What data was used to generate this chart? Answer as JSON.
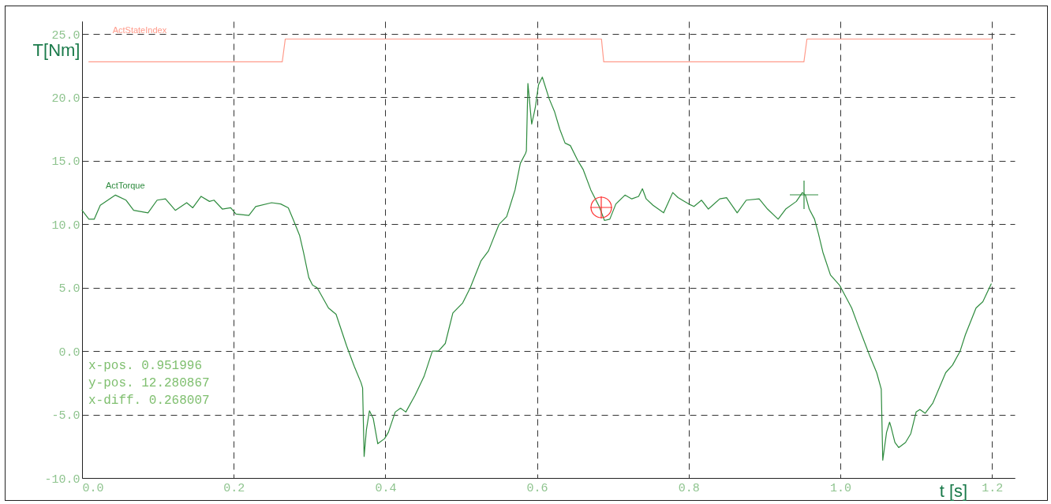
{
  "chart_data": {
    "type": "line",
    "xlabel": "t [s]",
    "ylabel": "T[Nm]",
    "xlim": [
      0,
      1.23
    ],
    "ylim": [
      -10,
      26
    ],
    "xticks": [
      {
        "value": 0,
        "label": "0.0"
      },
      0.2,
      0.4,
      0.6,
      0.8,
      {
        "value": 1,
        "label": "1.0"
      },
      1.2
    ],
    "yticks": [
      {
        "value": -10,
        "label": "-10.0"
      },
      {
        "value": -5,
        "label": "-5.0"
      },
      {
        "value": 0,
        "label": "0.0"
      },
      {
        "value": 5,
        "label": "5.0"
      },
      {
        "value": 10,
        "label": "10.0"
      },
      {
        "value": 15,
        "label": "15.0"
      },
      {
        "value": 20,
        "label": "20.0"
      },
      {
        "value": 25,
        "label": "25.0"
      }
    ],
    "grid": true,
    "annotations": [
      "x-pos. 0.951996",
      "y-pos. 12.280867",
      "x-diff. 0.268007"
    ],
    "series": [
      {
        "name": "ActStateIndex",
        "color": "#ff9a8a",
        "x": [
          0.009,
          0.264,
          0.268,
          0.685,
          0.688,
          0.952,
          0.956,
          1.2
        ],
        "values": [
          22.8,
          22.8,
          24.6,
          24.6,
          22.8,
          22.8,
          24.6,
          24.6
        ]
      },
      {
        "name": "ActTorque",
        "color": "#2e8b3e",
        "x": [
          0,
          0.009,
          0.016,
          0.024,
          0.044,
          0.058,
          0.068,
          0.087,
          0.099,
          0.11,
          0.123,
          0.138,
          0.146,
          0.157,
          0.168,
          0.174,
          0.185,
          0.196,
          0.203,
          0.22,
          0.229,
          0.25,
          0.262,
          0.272,
          0.279,
          0.287,
          0.292,
          0.299,
          0.304,
          0.31,
          0.325,
          0.335,
          0.349,
          0.359,
          0.368,
          0.37,
          0.372,
          0.375,
          0.379,
          0.384,
          0.39,
          0.399,
          0.404,
          0.413,
          0.42,
          0.427,
          0.439,
          0.451,
          0.462,
          0.47,
          0.479,
          0.489,
          0.502,
          0.512,
          0.526,
          0.536,
          0.55,
          0.56,
          0.571,
          0.578,
          0.585,
          0.586,
          0.588,
          0.592,
          0.593,
          0.596,
          0.598,
          0.602,
          0.607,
          0.616,
          0.623,
          0.63,
          0.637,
          0.644,
          0.654,
          0.661,
          0.671,
          0.682,
          0.689,
          0.696,
          0.704,
          0.716,
          0.725,
          0.734,
          0.739,
          0.744,
          0.753,
          0.767,
          0.779,
          0.786,
          0.8,
          0.807,
          0.817,
          0.826,
          0.841,
          0.85,
          0.864,
          0.876,
          0.893,
          0.904,
          0.918,
          0.928,
          0.942,
          0.95,
          0.954,
          0.959,
          0.966,
          0.971,
          0.977,
          0.987,
          0.999,
          1.015,
          1.023,
          1.03,
          1.039,
          1.048,
          1.054,
          1.056,
          1.061,
          1.065,
          1.067,
          1.072,
          1.077,
          1.086,
          1.093,
          1.1,
          1.105,
          1.112,
          1.122,
          1.139,
          1.148,
          1.158,
          1.165,
          1.179,
          1.188,
          1.199
        ],
        "values": [
          11.1,
          10.4,
          10.4,
          11.5,
          12.3,
          11.9,
          11.1,
          10.9,
          11.9,
          12.0,
          11.1,
          11.7,
          11.3,
          12.2,
          11.8,
          11.9,
          11.2,
          11.3,
          10.8,
          10.7,
          11.4,
          11.7,
          11.6,
          11.3,
          10.3,
          9.1,
          7.8,
          5.8,
          5.2,
          5.0,
          3.4,
          2.9,
          0.4,
          -1.2,
          -2.5,
          -2.9,
          -8.3,
          -6.2,
          -4.7,
          -5.3,
          -7.3,
          -6.9,
          -6.4,
          -4.8,
          -4.5,
          -4.8,
          -3.5,
          -2.0,
          0,
          0,
          0.6,
          3.0,
          3.8,
          5.0,
          7.1,
          7.9,
          10.0,
          10.6,
          12.7,
          14.8,
          15.6,
          15.8,
          21.1,
          18.5,
          17.9,
          18.7,
          19.3,
          21.0,
          21.6,
          19.9,
          18.9,
          17.5,
          16.4,
          16.2,
          15.0,
          14.3,
          12.7,
          11.4,
          10.3,
          10.4,
          11.6,
          12.3,
          12.0,
          12.2,
          12.8,
          12.0,
          11.5,
          10.9,
          12.5,
          12.1,
          11.6,
          11.4,
          11.9,
          11.2,
          12.0,
          12.1,
          10.9,
          11.9,
          12.0,
          11.2,
          10.4,
          11.2,
          11.8,
          12.5,
          12.3,
          11.2,
          10.4,
          9.3,
          7.8,
          6.0,
          5.2,
          3.4,
          2.1,
          1.0,
          -0.4,
          -1.7,
          -3.0,
          -8.6,
          -6.4,
          -5.6,
          -6.0,
          -7.2,
          -7.6,
          -7.2,
          -6.5,
          -4.8,
          -4.6,
          -4.9,
          -4.1,
          -1.7,
          -1.1,
          0,
          1.3,
          3.4,
          3.9,
          5.3
        ]
      }
    ]
  }
}
